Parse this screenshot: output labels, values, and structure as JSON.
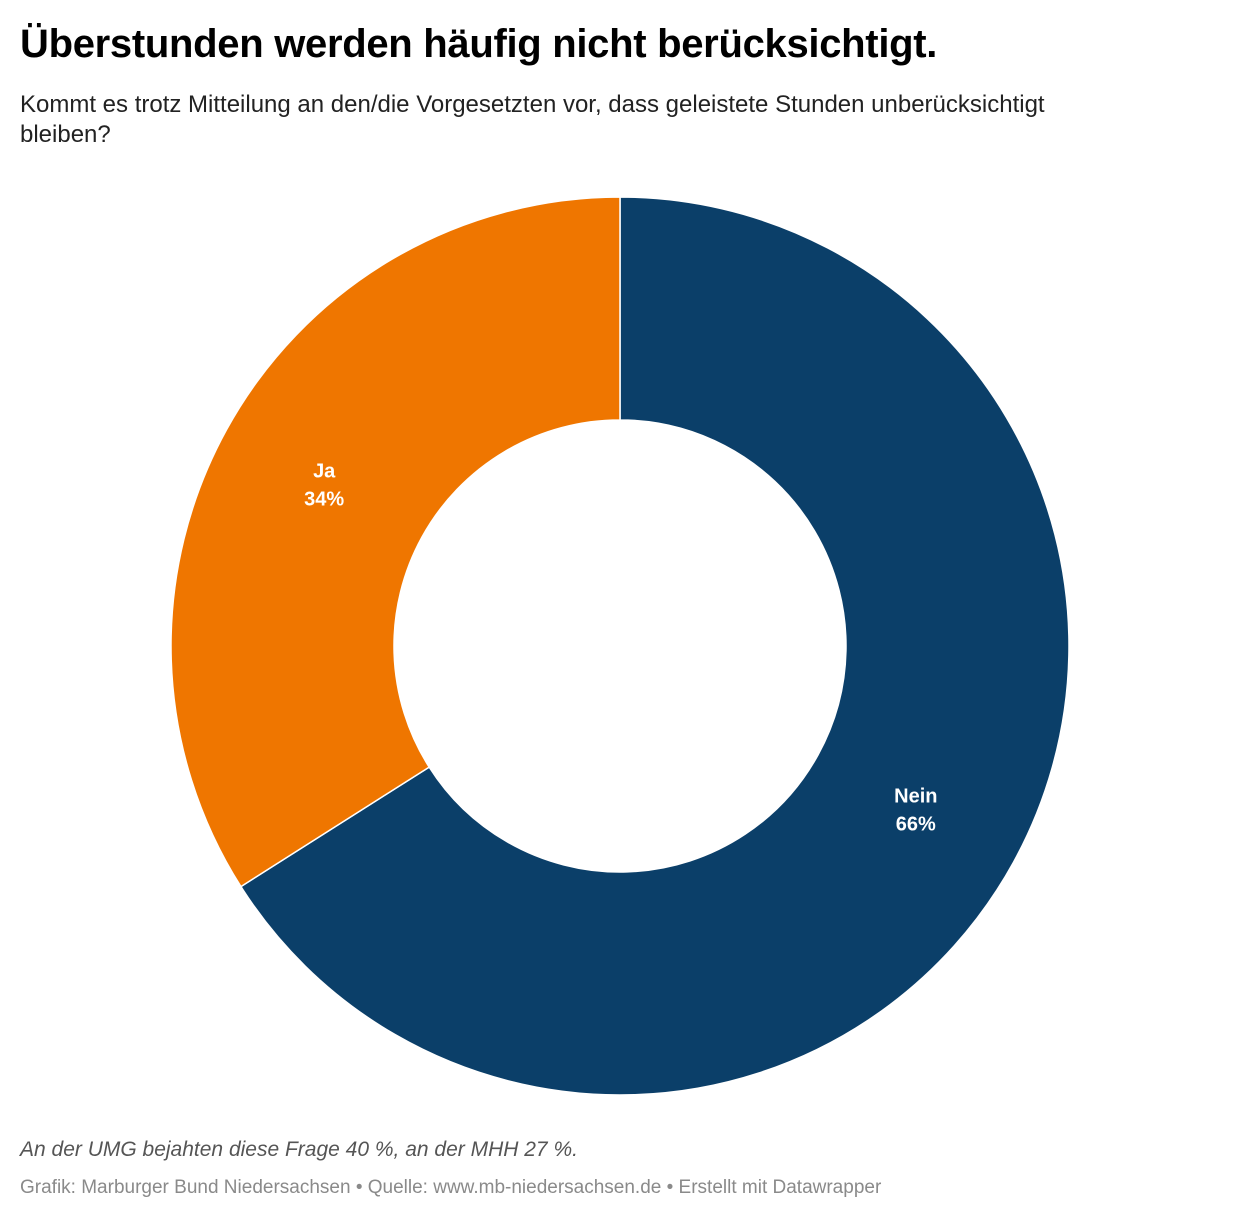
{
  "chart_data": {
    "type": "pie",
    "variant": "donut",
    "title": "Überstunden werden häufig nicht berücksichtigt.",
    "subtitle": "Kommt es trotz Mitteilung an den/die Vorgesetzten vor, dass geleistete Stunden unberücksichtigt bleiben?",
    "slices": [
      {
        "label": "Nein",
        "value": 66,
        "value_label": "66%",
        "color": "#0b3f69"
      },
      {
        "label": "Ja",
        "value": 34,
        "value_label": "34%",
        "color": "#ef7600"
      }
    ],
    "note": "An der UMG bejahten diese Frage 40 %, an der MHH 27 %.",
    "source": "Grafik: Marburger Bund Niedersachsen • Quelle: www.mb-niedersachsen.de • Erstellt mit Datawrapper"
  }
}
